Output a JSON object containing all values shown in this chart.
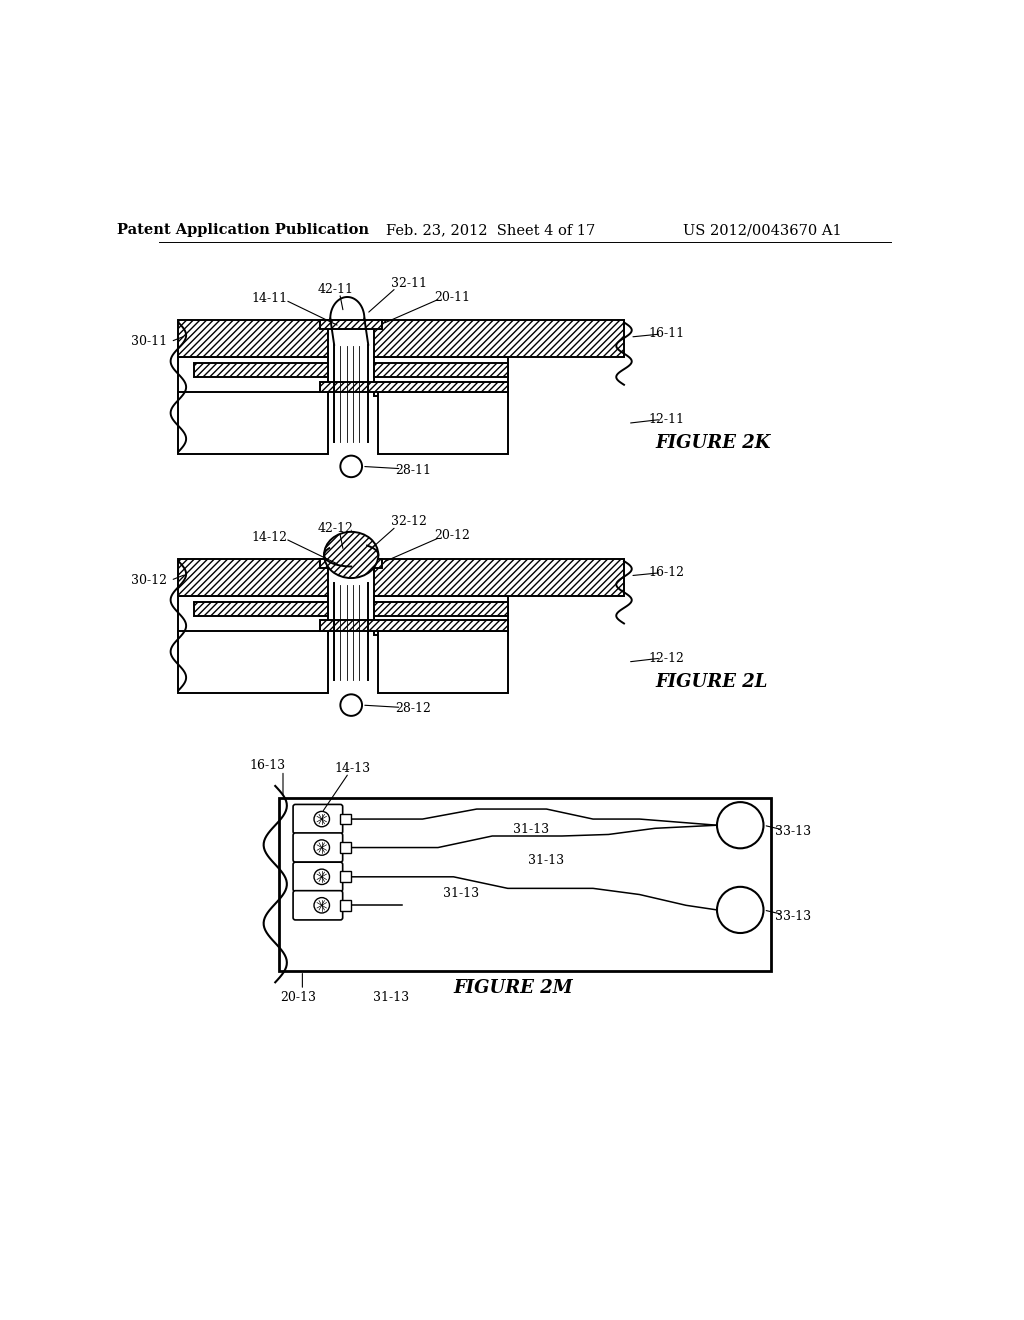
{
  "bg_color": "#ffffff",
  "header_left": "Patent Application Publication",
  "header_mid": "Feb. 23, 2012  Sheet 4 of 17",
  "header_right": "US 2012/0043670 A1",
  "fig2k_label": "FIGURE 2K",
  "fig2l_label": "FIGURE 2L",
  "fig2m_label": "FIGURE 2M",
  "line_color": "#000000"
}
